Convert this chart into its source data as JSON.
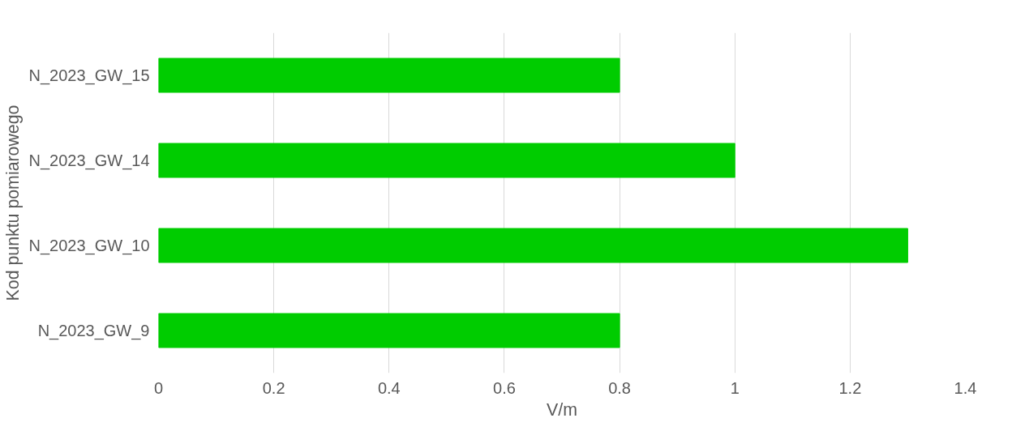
{
  "chart_data": {
    "type": "bar",
    "orientation": "horizontal",
    "xlabel": "V/m",
    "ylabel": "Kod punktu pomiarowego",
    "categories": [
      "N_2023_GW_15",
      "N_2023_GW_14",
      "N_2023_GW_10",
      "N_2023_GW_9"
    ],
    "values": [
      0.8,
      1,
      1.3,
      0.8
    ],
    "color": "#00cc00",
    "xlim": [
      0,
      1.4
    ],
    "xticks": [
      0,
      {
        "value": 0.2,
        "label": "0.2"
      },
      {
        "value": 0.4,
        "label": "0.4"
      },
      {
        "value": 0.6,
        "label": "0.6"
      },
      {
        "value": 0.8,
        "label": "0.8"
      },
      1,
      {
        "value": 1.2,
        "label": "1.2"
      },
      {
        "value": 1.4,
        "label": "1.4"
      }
    ],
    "grid": "x"
  }
}
